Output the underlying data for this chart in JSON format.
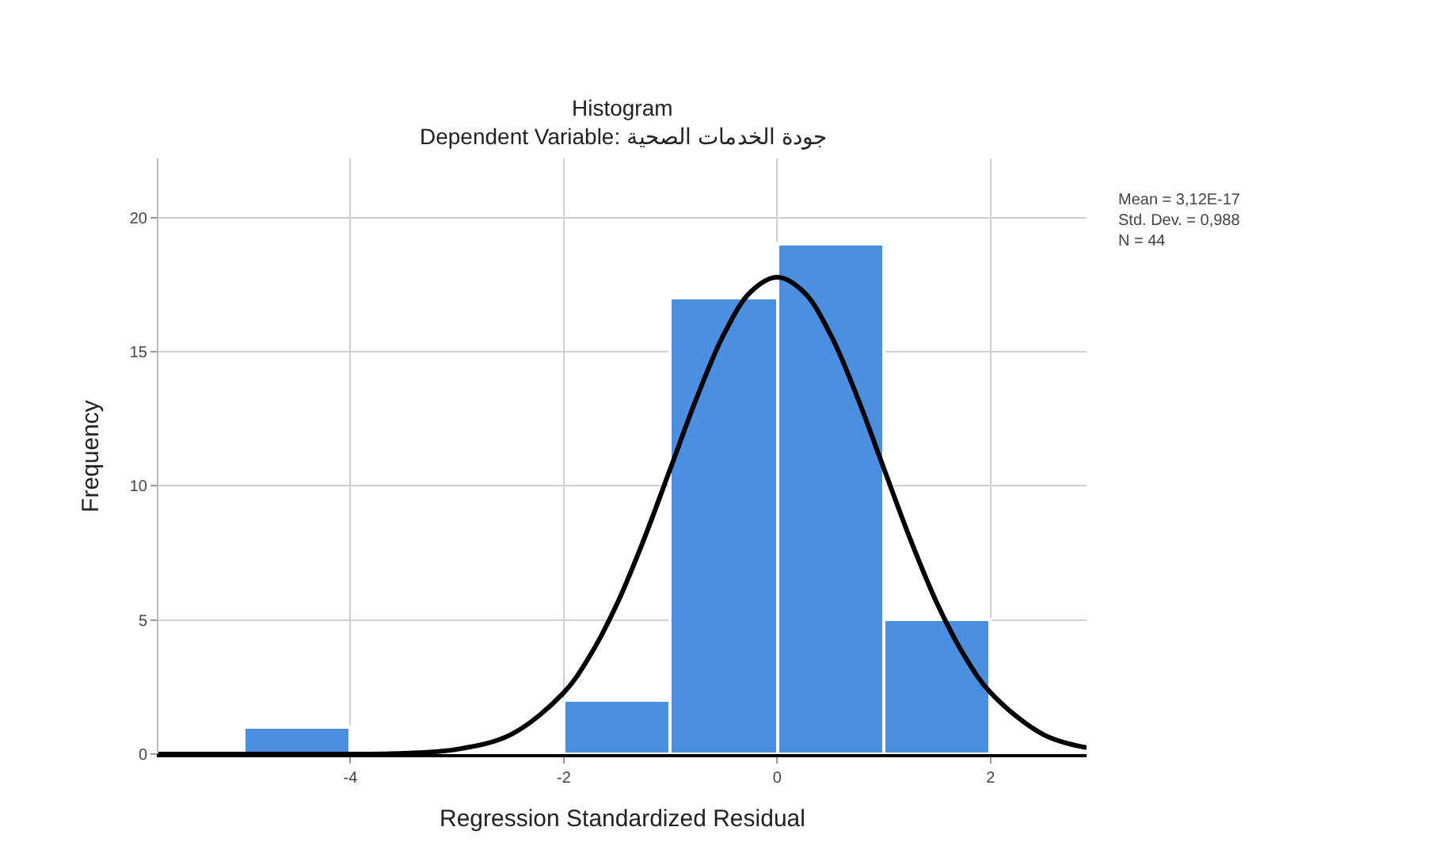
{
  "chart_data": {
    "type": "histogram",
    "title": "Histogram",
    "subtitle": "Dependent Variable: جودة الخدمات الصحية",
    "xlabel": "Regression Standardized Residual",
    "ylabel": "Frequency",
    "bins": [
      -5,
      -4,
      -3,
      -2,
      -1,
      0,
      1,
      2
    ],
    "values": [
      1,
      0,
      0,
      2,
      17,
      19,
      5
    ],
    "color": "#4a8fe0",
    "series": [
      {
        "type": "line",
        "color": "#000000",
        "x": [
          -5.8,
          -4.5,
          -4,
          -3.5,
          -3,
          -2.5,
          -2,
          -1.75,
          -1.5,
          -1.25,
          -1,
          -0.75,
          -0.5,
          -0.25,
          0,
          0.25,
          0.5,
          0.75,
          1,
          1.25,
          1.5,
          1.75,
          2,
          2.5,
          2.9
        ],
        "values": [
          0,
          0,
          0,
          0.03,
          0.18,
          0.72,
          2.29,
          3.7,
          5.61,
          7.99,
          10.65,
          13.32,
          15.64,
          17.22,
          17.77,
          17.22,
          15.64,
          13.32,
          10.65,
          7.99,
          5.61,
          3.7,
          2.29,
          0.72,
          0.24
        ]
      }
    ],
    "xlim": [
      -5.8,
      2.9
    ],
    "xticks": [
      -4,
      -2,
      0,
      2
    ],
    "ylim": [
      0,
      22.2
    ],
    "yticks": [
      0,
      5,
      10,
      15,
      20
    ],
    "grid": true,
    "annotations": [
      "Mean = 3,12E-17",
      "Std. Dev. = 0,988",
      "N = 44"
    ]
  }
}
